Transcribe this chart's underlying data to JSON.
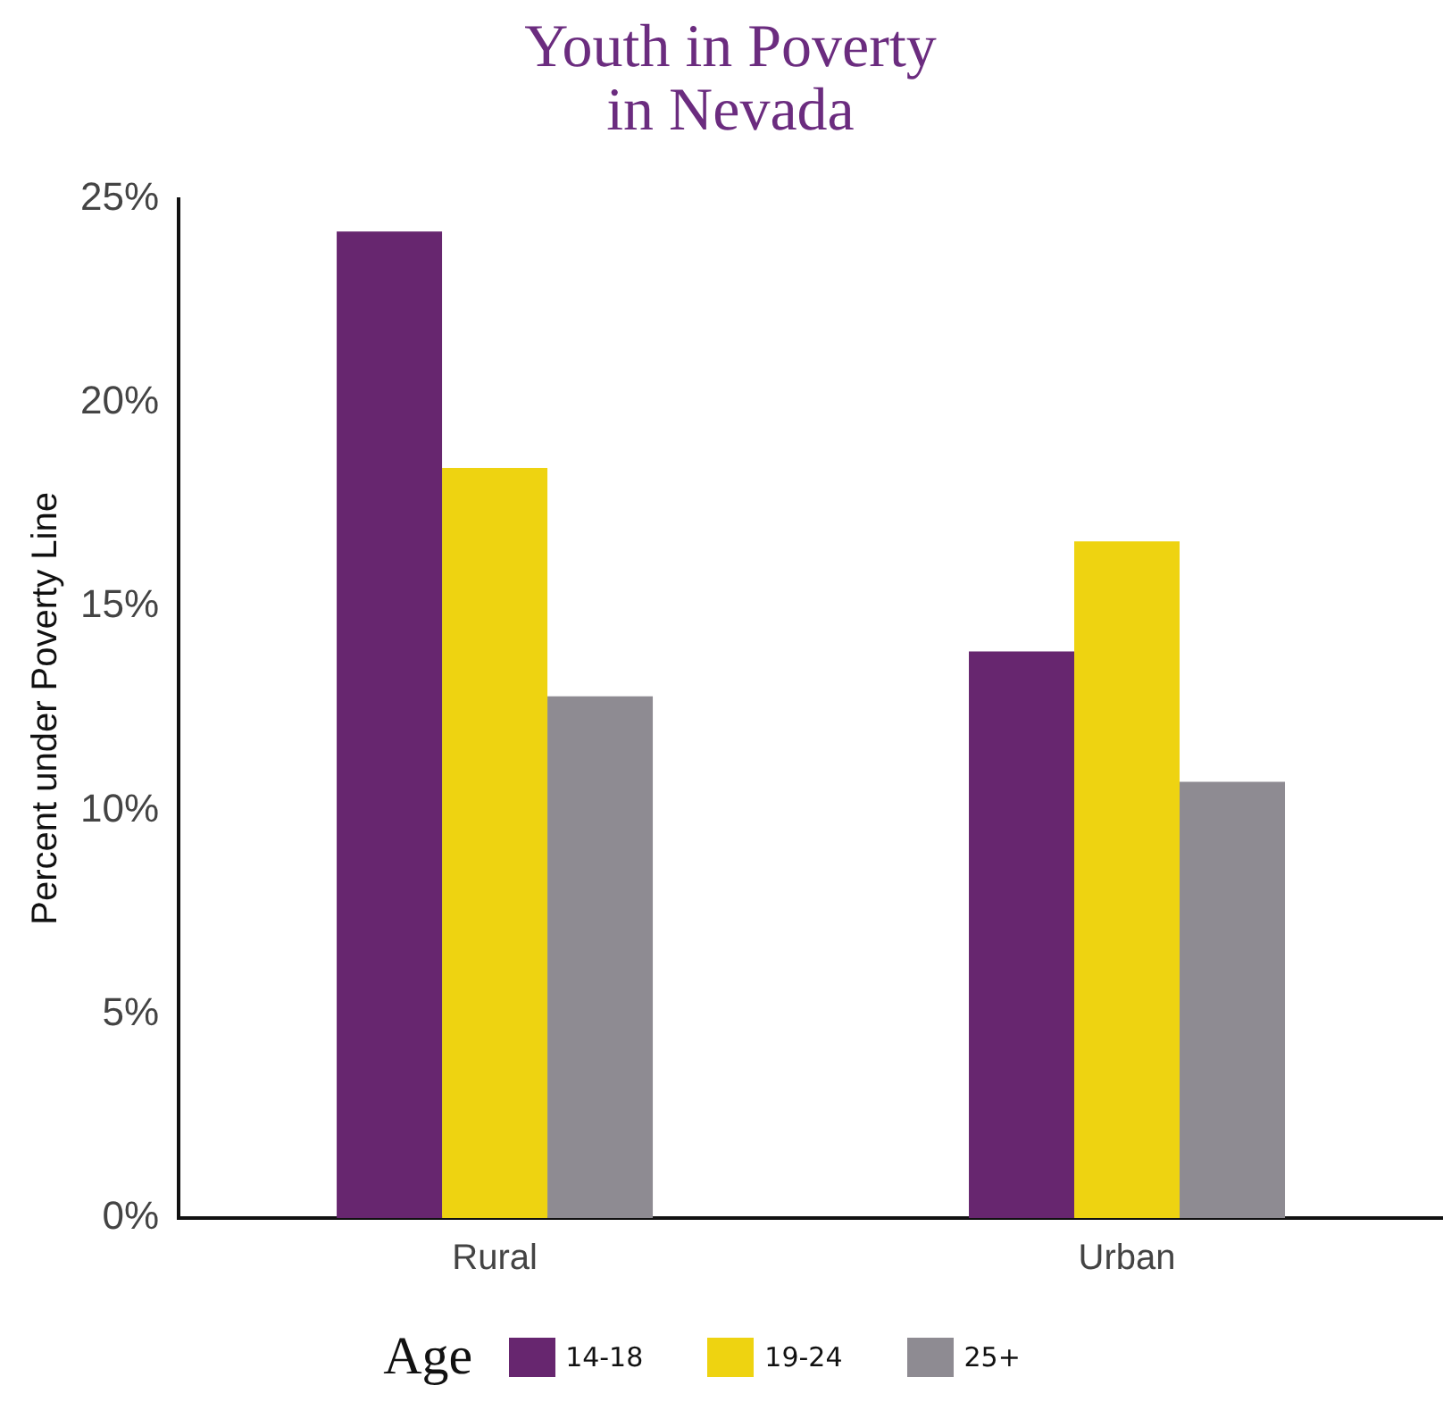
{
  "chart_data": {
    "type": "bar",
    "title": [
      "Youth in Poverty",
      "in Nevada"
    ],
    "ylabel": "Percent under Poverty Line",
    "legend_title": "Age",
    "categories": [
      "Rural",
      "Urban"
    ],
    "series": [
      {
        "name": "14-18",
        "color": "#67266f",
        "values": [
          24.2,
          13.9
        ]
      },
      {
        "name": "19-24",
        "color": "#eed311",
        "values": [
          18.4,
          16.6
        ]
      },
      {
        "name": "25+",
        "color": "#8e8b92",
        "values": [
          12.8,
          10.7
        ]
      }
    ],
    "ylim": [
      0,
      25
    ],
    "yticks": [
      {
        "value": 0,
        "label": "0%"
      },
      {
        "value": 5,
        "label": "5%"
      },
      {
        "value": 10,
        "label": "10%"
      },
      {
        "value": 15,
        "label": "15%"
      },
      {
        "value": 20,
        "label": "20%"
      },
      {
        "value": 25,
        "label": "25%"
      }
    ],
    "grid": false,
    "legend": "bottom"
  }
}
